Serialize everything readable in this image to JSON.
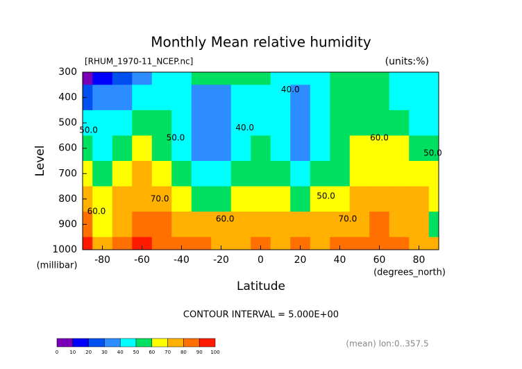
{
  "chart_data": {
    "type": "contour",
    "title": "Monthly Mean relative humidity",
    "subtitle": "[RHUM_1970-11_NCEP.nc]",
    "units_label": "(units:%)",
    "x_label": "Latitude",
    "x_units": "(degrees_north)",
    "y_label": "Level",
    "y_units": "(millibar)",
    "footer": "CONTOUR INTERVAL = 5.000E+00",
    "note": "(mean) lon:0..357.5",
    "xlim": [
      -90,
      90
    ],
    "xticks": [
      -80,
      -60,
      -40,
      -20,
      0,
      20,
      40,
      60,
      80
    ],
    "ylim": [
      1000,
      300
    ],
    "yticks": [
      300,
      400,
      500,
      600,
      700,
      800,
      900,
      1000
    ],
    "x": [
      -90,
      -80,
      -70,
      -60,
      -50,
      -40,
      -30,
      -20,
      -10,
      0,
      10,
      20,
      30,
      40,
      50,
      60,
      70,
      80,
      90
    ],
    "y": [
      300,
      400,
      500,
      600,
      700,
      800,
      900,
      1000
    ],
    "z": [
      [
        5,
        10,
        25,
        35,
        45,
        45,
        50,
        50,
        55,
        50,
        45,
        45,
        45,
        55,
        55,
        50,
        45,
        45,
        40
      ],
      [
        20,
        30,
        35,
        45,
        45,
        40,
        35,
        35,
        40,
        45,
        40,
        35,
        40,
        50,
        55,
        50,
        45,
        45,
        40
      ],
      [
        45,
        40,
        45,
        50,
        50,
        40,
        35,
        35,
        40,
        45,
        40,
        30,
        40,
        50,
        55,
        55,
        50,
        45,
        45
      ],
      [
        55,
        45,
        55,
        60,
        55,
        45,
        35,
        35,
        40,
        50,
        40,
        35,
        40,
        50,
        60,
        60,
        65,
        55,
        50
      ],
      [
        60,
        55,
        65,
        70,
        65,
        55,
        45,
        45,
        50,
        55,
        50,
        45,
        50,
        55,
        60,
        65,
        65,
        65,
        60
      ],
      [
        75,
        60,
        70,
        75,
        75,
        65,
        55,
        55,
        60,
        65,
        60,
        55,
        60,
        65,
        70,
        70,
        70,
        70,
        65
      ],
      [
        80,
        65,
        75,
        80,
        80,
        75,
        70,
        70,
        70,
        75,
        75,
        70,
        70,
        75,
        75,
        80,
        75,
        70,
        55
      ],
      [
        95,
        70,
        85,
        90,
        85,
        80,
        80,
        75,
        75,
        80,
        75,
        80,
        75,
        80,
        85,
        85,
        85,
        75,
        70
      ]
    ],
    "levels": [
      0,
      10,
      20,
      30,
      40,
      50,
      60,
      70,
      80,
      90,
      100
    ],
    "colors": [
      "#7a00b8",
      "#0000ff",
      "#0050f0",
      "#2d8cff",
      "#00ffff",
      "#00e060",
      "#ffff00",
      "#ffb000",
      "#ff7000",
      "#ff1a00"
    ],
    "annotations": [
      {
        "text": "40.0",
        "x": 15,
        "y": 370
      },
      {
        "text": "40.0",
        "x": -8,
        "y": 520
      },
      {
        "text": "50.0",
        "x": -43,
        "y": 560
      },
      {
        "text": "50.0",
        "x": -87,
        "y": 530
      },
      {
        "text": "60.0",
        "x": 60,
        "y": 560
      },
      {
        "text": "50.0",
        "x": 87,
        "y": 620
      },
      {
        "text": "70.0",
        "x": -51,
        "y": 800
      },
      {
        "text": "60.0",
        "x": -18,
        "y": 880
      },
      {
        "text": "50.0",
        "x": 33,
        "y": 790
      },
      {
        "text": "70.0",
        "x": 44,
        "y": 880
      },
      {
        "text": "60.0",
        "x": -83,
        "y": 850
      }
    ]
  }
}
